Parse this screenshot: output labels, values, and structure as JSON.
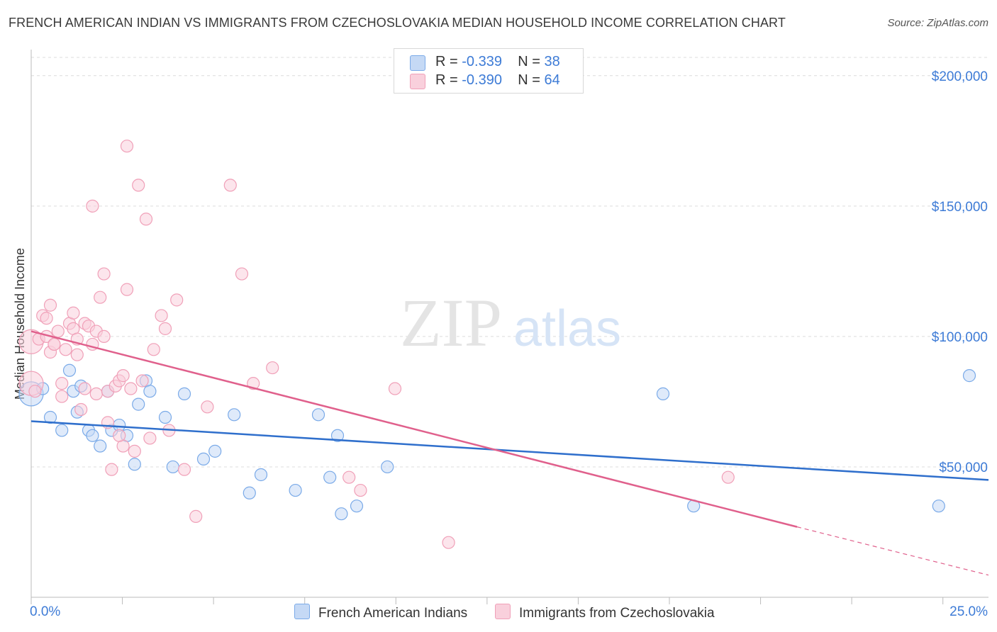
{
  "title": "FRENCH AMERICAN INDIAN VS IMMIGRANTS FROM CZECHOSLOVAKIA MEDIAN HOUSEHOLD INCOME CORRELATION CHART",
  "source": "Source: ZipAtlas.com",
  "watermark": {
    "zip": "ZIP",
    "atlas": "atlas"
  },
  "legend": {
    "rows": [
      {
        "r_label": "R =",
        "r_value": "-0.339",
        "n_label": "N =",
        "n_value": "38"
      },
      {
        "r_label": "R =",
        "r_value": "-0.390",
        "n_label": "N =",
        "n_value": "64"
      }
    ]
  },
  "chart_data": {
    "type": "scatter",
    "title": "FRENCH AMERICAN INDIAN VS IMMIGRANTS FROM CZECHOSLOVAKIA MEDIAN HOUSEHOLD INCOME CORRELATION CHART",
    "xlabel": "",
    "ylabel": "Median Household Income",
    "xlim": [
      0,
      25
    ],
    "ylim": [
      0,
      210000
    ],
    "x_tick_labels": [
      "0.0%",
      "25.0%"
    ],
    "y_ticks": [
      50000,
      100000,
      150000,
      200000
    ],
    "y_tick_labels": [
      "$50,000",
      "$100,000",
      "$150,000",
      "$200,000"
    ],
    "grid": true,
    "legend_position": "top-center",
    "series": [
      {
        "name": "French American Indians",
        "color": "#7aaae8",
        "fill": "#c5d9f5",
        "line_color": "#2f6fcc",
        "trend": {
          "x": [
            0,
            25
          ],
          "y": [
            67500,
            45000
          ],
          "dashed_from": null
        },
        "points": [
          [
            0.0,
            78000
          ],
          [
            0.3,
            80000
          ],
          [
            0.5,
            69000
          ],
          [
            0.8,
            64000
          ],
          [
            1.0,
            87000
          ],
          [
            1.1,
            79000
          ],
          [
            1.2,
            71000
          ],
          [
            1.3,
            81000
          ],
          [
            1.5,
            64000
          ],
          [
            1.6,
            62000
          ],
          [
            1.8,
            58000
          ],
          [
            2.0,
            79000
          ],
          [
            2.1,
            64000
          ],
          [
            2.3,
            66000
          ],
          [
            2.5,
            62000
          ],
          [
            2.7,
            51000
          ],
          [
            2.8,
            74000
          ],
          [
            3.0,
            83000
          ],
          [
            3.1,
            79000
          ],
          [
            3.5,
            69000
          ],
          [
            3.7,
            50000
          ],
          [
            4.0,
            78000
          ],
          [
            4.5,
            53000
          ],
          [
            4.8,
            56000
          ],
          [
            5.3,
            70000
          ],
          [
            5.7,
            40000
          ],
          [
            6.0,
            47000
          ],
          [
            6.9,
            41000
          ],
          [
            7.5,
            70000
          ],
          [
            7.8,
            46000
          ],
          [
            8.0,
            62000
          ],
          [
            8.1,
            32000
          ],
          [
            8.5,
            35000
          ],
          [
            9.3,
            50000
          ],
          [
            16.5,
            78000
          ],
          [
            17.3,
            35000
          ],
          [
            23.7,
            35000
          ],
          [
            24.5,
            85000
          ]
        ]
      },
      {
        "name": "Immigrants from Czechoslovakia",
        "color": "#f0a0b8",
        "fill": "#f9d0dc",
        "line_color": "#e0608c",
        "trend": {
          "x": [
            0,
            20,
            25
          ],
          "y": [
            102000,
            27000,
            8500
          ],
          "dashed_from": 20
        },
        "points": [
          [
            0.0,
            82000
          ],
          [
            0.0,
            98000
          ],
          [
            0.2,
            99000
          ],
          [
            0.3,
            108000
          ],
          [
            0.4,
            100000
          ],
          [
            0.4,
            107000
          ],
          [
            0.5,
            94000
          ],
          [
            0.5,
            112000
          ],
          [
            0.6,
            97000
          ],
          [
            0.7,
            102000
          ],
          [
            0.8,
            77000
          ],
          [
            0.8,
            82000
          ],
          [
            0.9,
            95000
          ],
          [
            1.0,
            105000
          ],
          [
            1.1,
            103000
          ],
          [
            1.1,
            109000
          ],
          [
            1.2,
            93000
          ],
          [
            1.3,
            72000
          ],
          [
            1.4,
            105000
          ],
          [
            1.4,
            80000
          ],
          [
            1.5,
            104000
          ],
          [
            1.6,
            97000
          ],
          [
            1.6,
            150000
          ],
          [
            1.7,
            102000
          ],
          [
            1.7,
            78000
          ],
          [
            1.8,
            115000
          ],
          [
            1.9,
            124000
          ],
          [
            1.9,
            100000
          ],
          [
            2.0,
            67000
          ],
          [
            2.0,
            79000
          ],
          [
            2.1,
            49000
          ],
          [
            2.2,
            81000
          ],
          [
            2.3,
            83000
          ],
          [
            2.4,
            58000
          ],
          [
            2.4,
            85000
          ],
          [
            2.5,
            173000
          ],
          [
            2.5,
            118000
          ],
          [
            2.6,
            80000
          ],
          [
            2.7,
            56000
          ],
          [
            2.8,
            158000
          ],
          [
            2.9,
            83000
          ],
          [
            3.0,
            145000
          ],
          [
            3.1,
            61000
          ],
          [
            3.2,
            95000
          ],
          [
            3.4,
            108000
          ],
          [
            3.5,
            103000
          ],
          [
            3.6,
            64000
          ],
          [
            3.8,
            114000
          ],
          [
            4.0,
            49000
          ],
          [
            4.3,
            31000
          ],
          [
            4.6,
            73000
          ],
          [
            5.2,
            158000
          ],
          [
            5.5,
            124000
          ],
          [
            5.8,
            82000
          ],
          [
            6.3,
            88000
          ],
          [
            8.3,
            46000
          ],
          [
            8.6,
            41000
          ],
          [
            9.5,
            80000
          ],
          [
            10.9,
            21000
          ],
          [
            18.2,
            46000
          ],
          [
            0.1,
            79000
          ],
          [
            1.2,
            99000
          ],
          [
            2.3,
            62000
          ],
          [
            0.6,
            97000
          ]
        ]
      }
    ]
  }
}
